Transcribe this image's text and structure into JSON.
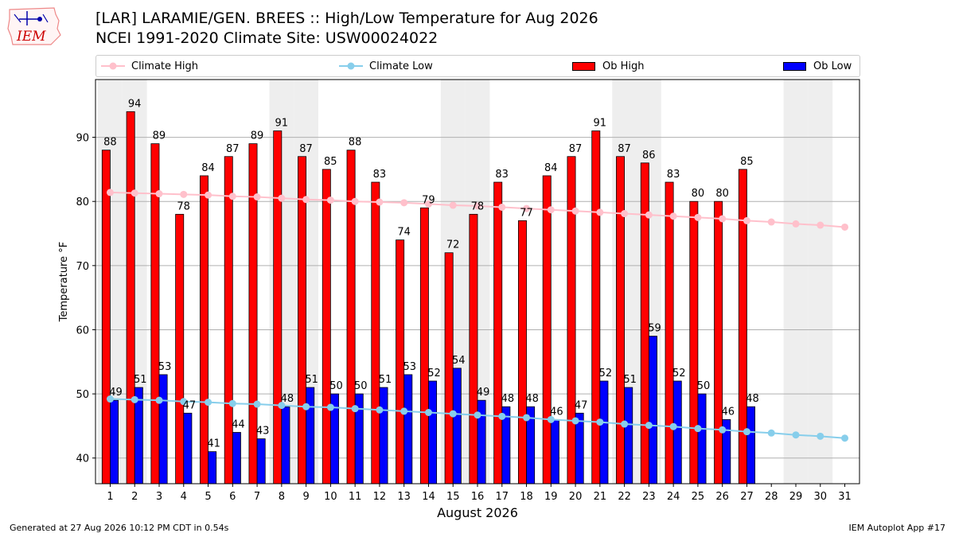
{
  "header": {
    "title_line1": "[LAR] LARAMIE/GEN. BREES :: High/Low Temperature for Aug 2026",
    "title_line2": "NCEI 1991-2020 Climate Site: USW00024022",
    "logo_text": "IEM"
  },
  "legend": {
    "climate_high": "Climate High",
    "climate_low": "Climate Low",
    "ob_high": "Ob High",
    "ob_low": "Ob Low"
  },
  "footer": {
    "left": "Generated at 27 Aug 2026 10:12 PM CDT in 0.54s",
    "right": "IEM Autoplot App #17"
  },
  "colors": {
    "ob_high": "#ff0000",
    "ob_low": "#0000ff",
    "climate_high": "#ffc0cb",
    "climate_low": "#87ceeb",
    "weekend_shade": "#eeeeee",
    "grid": "#b0b0b0"
  },
  "chart_data": {
    "type": "bar",
    "xlabel": "August 2026",
    "ylabel": "Temperature °F",
    "ylim": [
      36,
      99
    ],
    "xlim": [
      0.4,
      31.6
    ],
    "yticks": [
      40,
      50,
      60,
      70,
      80,
      90
    ],
    "days": [
      1,
      2,
      3,
      4,
      5,
      6,
      7,
      8,
      9,
      10,
      11,
      12,
      13,
      14,
      15,
      16,
      17,
      18,
      19,
      20,
      21,
      22,
      23,
      24,
      25,
      26,
      27,
      28,
      29,
      30,
      31
    ],
    "weekend_days": [
      1,
      2,
      8,
      9,
      15,
      16,
      22,
      23,
      29,
      30
    ],
    "grid": "horizontal",
    "series": [
      {
        "name": "Ob High",
        "kind": "bar",
        "values": [
          88,
          94,
          89,
          78,
          84,
          87,
          89,
          91,
          87,
          85,
          88,
          83,
          74,
          79,
          72,
          78,
          83,
          77,
          84,
          87,
          91,
          87,
          86,
          83,
          80,
          80,
          85
        ]
      },
      {
        "name": "Ob Low",
        "kind": "bar",
        "values": [
          49,
          51,
          53,
          47,
          41,
          44,
          43,
          48,
          51,
          50,
          50,
          51,
          53,
          52,
          54,
          49,
          48,
          48,
          46,
          47,
          52,
          51,
          59,
          52,
          50,
          46,
          48
        ]
      },
      {
        "name": "Climate High",
        "kind": "line",
        "values": [
          81.4,
          81.3,
          81.2,
          81.1,
          81.0,
          80.8,
          80.7,
          80.5,
          80.3,
          80.2,
          80.0,
          79.9,
          79.8,
          79.6,
          79.4,
          79.3,
          79.1,
          78.9,
          78.7,
          78.5,
          78.3,
          78.1,
          77.9,
          77.7,
          77.5,
          77.3,
          77.0,
          76.8,
          76.5,
          76.3,
          76.0
        ]
      },
      {
        "name": "Climate Low",
        "kind": "line",
        "values": [
          49.2,
          49.1,
          49.0,
          48.8,
          48.7,
          48.5,
          48.4,
          48.2,
          48.0,
          47.9,
          47.7,
          47.5,
          47.3,
          47.1,
          46.9,
          46.7,
          46.5,
          46.3,
          46.0,
          45.8,
          45.6,
          45.3,
          45.1,
          44.9,
          44.6,
          44.4,
          44.1,
          43.9,
          43.6,
          43.4,
          43.1
        ]
      }
    ]
  }
}
